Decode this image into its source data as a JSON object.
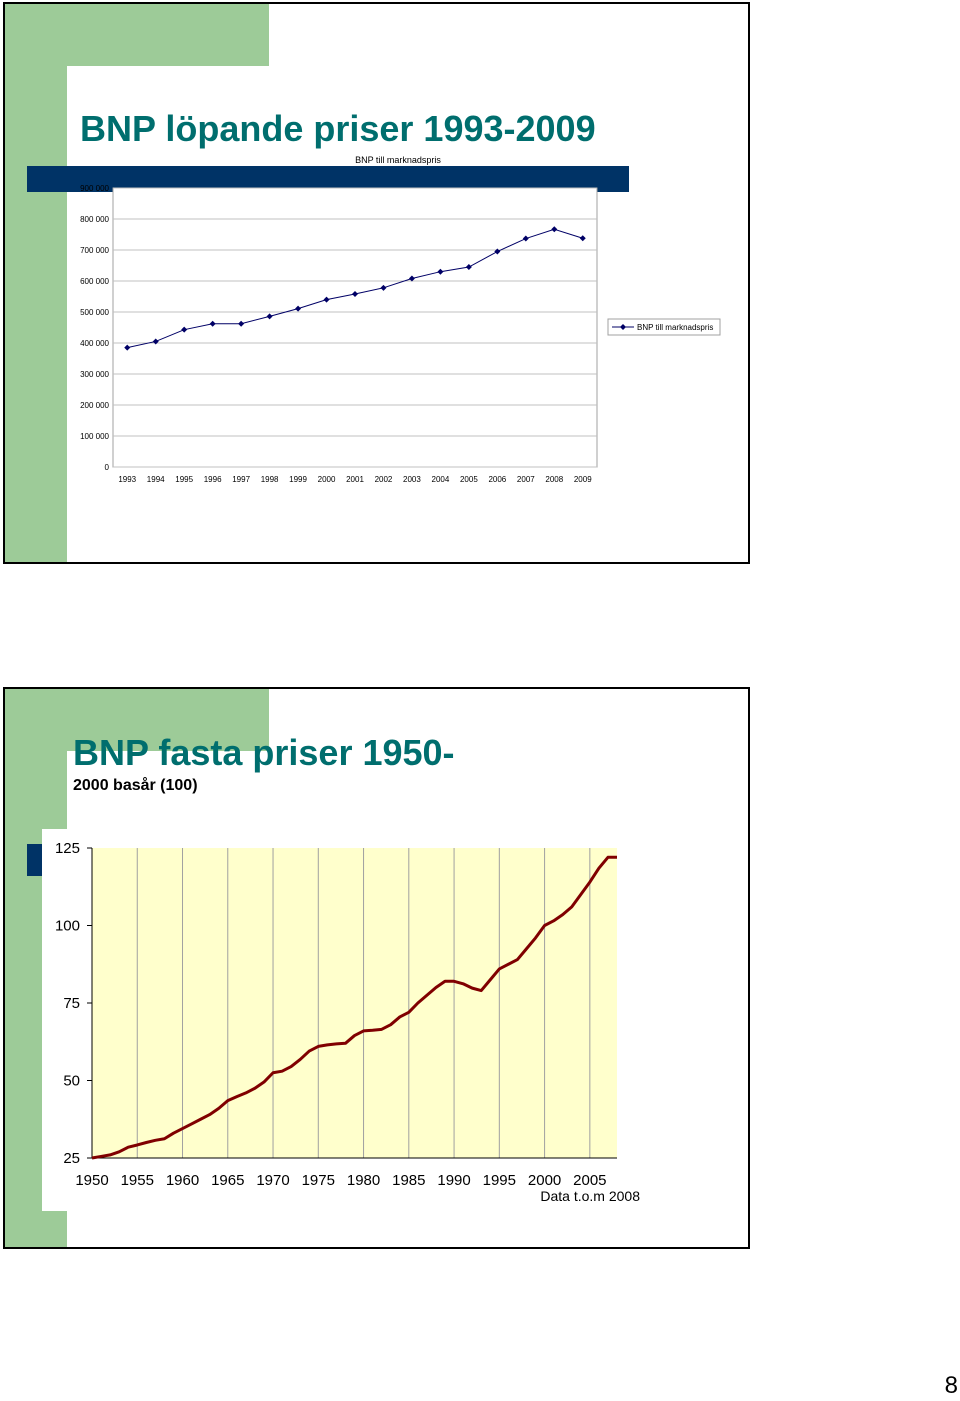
{
  "slides": [
    {
      "title": "BNP löpande priser 1993-2009"
    },
    {
      "title": "BNP fasta priser 1950-",
      "subtitle": "2000 basår (100)"
    }
  ],
  "page_number": "8",
  "colors": {
    "title": "#006e6e",
    "green_accent": "#9dcb98",
    "navy_bar": "#003366",
    "line1": "#000066",
    "line2": "#800000",
    "plot2_bg": "#ffffcc"
  },
  "chart_data": [
    {
      "type": "line",
      "title": "BNP till marknadspris",
      "x": [
        "1993",
        "1994",
        "1995",
        "1996",
        "1997",
        "1998",
        "1999",
        "2000",
        "2001",
        "2002",
        "2003",
        "2004",
        "2005",
        "2006",
        "2007",
        "2008",
        "2009"
      ],
      "series": [
        {
          "name": "BNP till marknadspris",
          "values": [
            385000,
            405000,
            443000,
            462000,
            462000,
            486000,
            511000,
            540000,
            558000,
            578000,
            608000,
            630000,
            645000,
            695000,
            737000,
            767000,
            738000
          ]
        }
      ],
      "yticks": [
        "0",
        "100 000",
        "200 000",
        "300 000",
        "400 000",
        "500 000",
        "600 000",
        "700 000",
        "800 000",
        "900 000"
      ],
      "ylim": [
        0,
        900000
      ],
      "marker": "diamond",
      "grid": "horizontal",
      "legend": "right"
    },
    {
      "type": "line",
      "x_ticks": [
        "1950",
        "1955",
        "1960",
        "1965",
        "1970",
        "1975",
        "1980",
        "1985",
        "1990",
        "1995",
        "2000",
        "2005"
      ],
      "yticks": [
        "25",
        "50",
        "75",
        "100",
        "125"
      ],
      "ylim": [
        25,
        125
      ],
      "xlim": [
        1950,
        2008
      ],
      "note": "Data t.o.m 2008",
      "grid": "vertical",
      "series": [
        {
          "x": [
            1950,
            1951,
            1952,
            1953,
            1954,
            1955,
            1956,
            1957,
            1958,
            1959,
            1960,
            1961,
            1962,
            1963,
            1964,
            1965,
            1966,
            1967,
            1968,
            1969,
            1970,
            1971,
            1972,
            1973,
            1974,
            1975,
            1976,
            1977,
            1978,
            1979,
            1980,
            1981,
            1982,
            1983,
            1984,
            1985,
            1986,
            1987,
            1988,
            1989,
            1990,
            1991,
            1992,
            1993,
            1994,
            1995,
            1996,
            1997,
            1998,
            1999,
            2000,
            2001,
            2002,
            2003,
            2004,
            2005,
            2006,
            2007,
            2008
          ],
          "values": [
            25,
            25.5,
            26,
            27,
            28.5,
            29.2,
            30,
            30.7,
            31.2,
            33,
            34.5,
            36,
            37.5,
            39,
            41,
            43.5,
            44.8,
            46,
            47.5,
            49.5,
            52.5,
            53,
            54.5,
            56.8,
            59.5,
            61,
            61.5,
            61.8,
            62,
            64.5,
            66,
            66.2,
            66.5,
            68,
            70.5,
            72,
            75,
            77.5,
            80,
            82,
            82,
            81.2,
            79.8,
            79,
            82.5,
            86,
            87.5,
            89,
            92.5,
            96,
            100,
            101.5,
            103.5,
            106,
            110,
            114,
            118.5,
            122,
            122
          ]
        }
      ]
    }
  ]
}
